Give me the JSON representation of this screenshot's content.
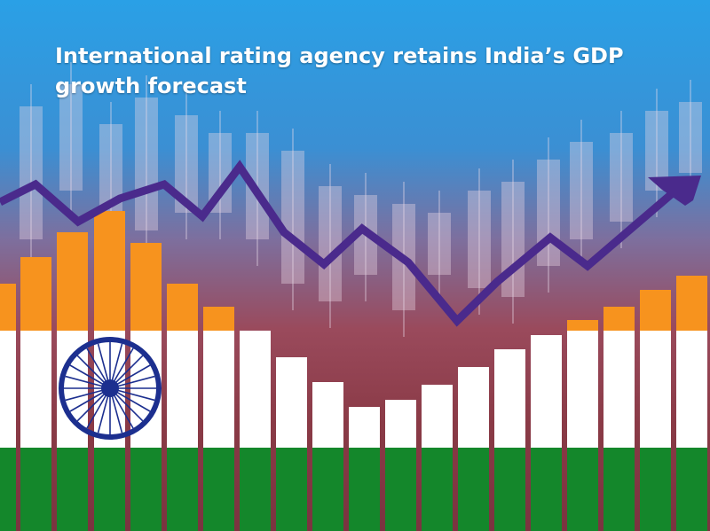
{
  "headline": "International rating agency retains India’s GDP growth forecast",
  "flag": {
    "saffron": "#f7931e",
    "white": "#ffffff",
    "green": "#14872b",
    "chakra": "#1c2f8f"
  },
  "trend_arrow": {
    "color": "#4a2a8c",
    "direction": "up-right"
  },
  "background": {
    "top": "#2aa0e6",
    "bottom": "#7a3440"
  }
}
